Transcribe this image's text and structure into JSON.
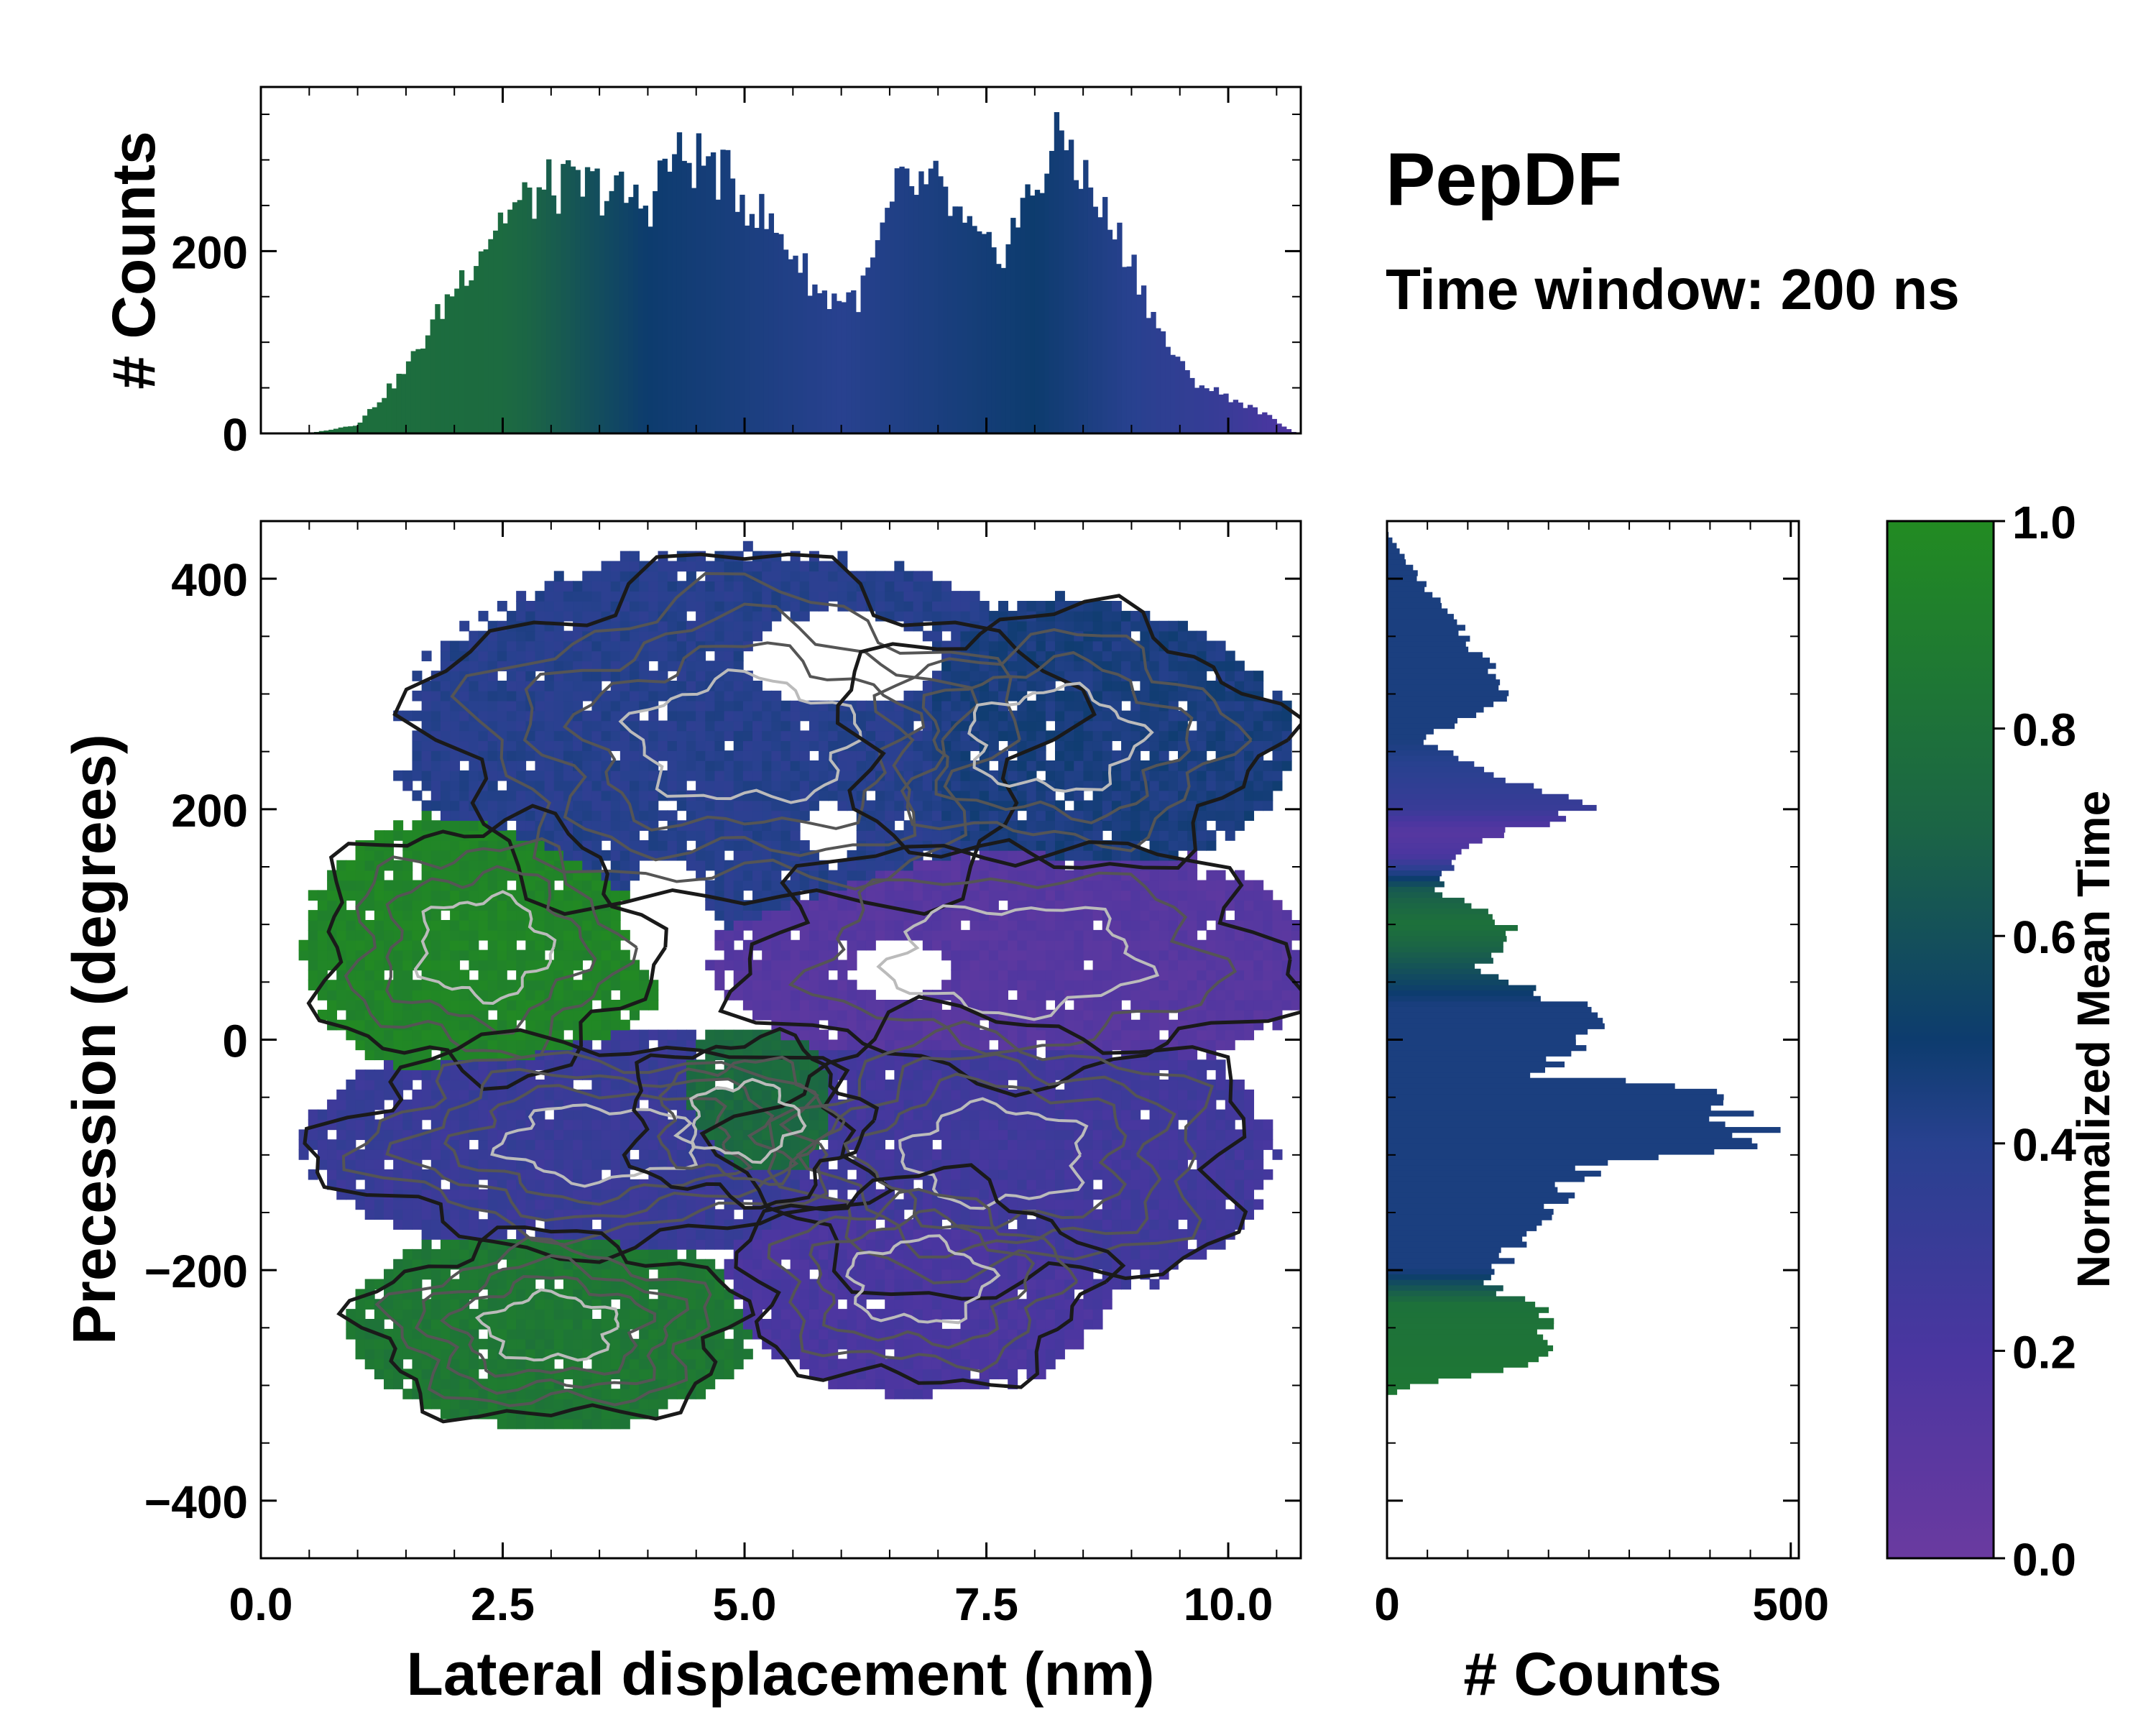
{
  "title": "PepDF",
  "subtitle": "Time window: 200 ns",
  "chart_data": [
    {
      "id": "top-histogram",
      "type": "bar",
      "description_role": "marginal histogram of lateral displacement",
      "ylabel": "# Counts",
      "xlim": [
        0,
        10.75
      ],
      "ylim": [
        0,
        380
      ],
      "yticks": [
        0,
        200
      ],
      "anchors_x": [
        0.5,
        1.0,
        1.5,
        2.0,
        2.5,
        3.0,
        3.5,
        4.0,
        4.2,
        4.6,
        5.0,
        5.5,
        5.8,
        6.2,
        6.6,
        7.0,
        7.3,
        7.6,
        8.0,
        8.3,
        8.6,
        9.0,
        9.3,
        9.6,
        10.0,
        10.4,
        10.7
      ],
      "anchors_y": [
        0,
        10,
        70,
        160,
        240,
        270,
        270,
        250,
        300,
        300,
        260,
        200,
        150,
        150,
        270,
        270,
        220,
        190,
        270,
        330,
        260,
        190,
        110,
        60,
        40,
        20,
        0
      ],
      "color_anchors_x": [
        0,
        2.5,
        4.0,
        6.0,
        8.0,
        10.0,
        10.75
      ],
      "color_anchors_t": [
        0.8,
        0.75,
        0.5,
        0.4,
        0.5,
        0.3,
        0.15
      ]
    },
    {
      "id": "main-heatmap",
      "type": "heatmap",
      "title": "",
      "xlabel": "Lateral displacement (nm)",
      "ylabel": "Precession (degrees)",
      "xlim": [
        0,
        10.75
      ],
      "ylim": [
        -450,
        450
      ],
      "xticks": [
        0.0,
        2.5,
        5.0,
        7.5,
        10.0
      ],
      "xtick_labels": [
        "0.0",
        "2.5",
        "5.0",
        "7.5",
        "10.0"
      ],
      "yticks": [
        400,
        200,
        0,
        -200,
        -400
      ],
      "ytick_labels": [
        "400",
        "200",
        "0",
        "−200",
        "−400"
      ],
      "grid": false,
      "regions": [
        {
          "name": "upper-cluster",
          "cx": 5.0,
          "cy": 260,
          "rx": 3.2,
          "ry": 150,
          "t": 0.4,
          "levels": 5
        },
        {
          "name": "upper-right-cluster",
          "cx": 8.2,
          "cy": 260,
          "rx": 2.2,
          "ry": 110,
          "t": 0.45,
          "levels": 4
        },
        {
          "name": "left-green-cluster",
          "cx": 2.3,
          "cy": 80,
          "rx": 1.7,
          "ry": 110,
          "t": 0.95,
          "levels": 4
        },
        {
          "name": "center-right-purple",
          "cx": 7.8,
          "cy": 70,
          "rx": 2.8,
          "ry": 100,
          "t": 0.12,
          "levels": 3
        },
        {
          "name": "left-middle-blue",
          "cx": 3.5,
          "cy": -90,
          "rx": 2.8,
          "ry": 90,
          "t": 0.3,
          "levels": 5
        },
        {
          "name": "center-right-mixed",
          "cx": 7.6,
          "cy": -100,
          "rx": 2.6,
          "ry": 120,
          "t": 0.25,
          "levels": 5
        },
        {
          "name": "bottom-left-green",
          "cx": 3.0,
          "cy": -250,
          "rx": 1.9,
          "ry": 80,
          "t": 0.85,
          "levels": 5
        },
        {
          "name": "bottom-center-purple",
          "cx": 6.8,
          "cy": -210,
          "rx": 1.8,
          "ry": 90,
          "t": 0.2,
          "levels": 4
        },
        {
          "name": "center-green",
          "cx": 5.0,
          "cy": -70,
          "rx": 1.2,
          "ry": 70,
          "t": 0.75,
          "levels": 3
        }
      ],
      "holes": [
        {
          "cx": 4.2,
          "cy": 105,
          "rx": 0.45,
          "ry": 55
        },
        {
          "cx": 6.0,
          "cy": 330,
          "rx": 1.0,
          "ry": 40
        },
        {
          "cx": 5.9,
          "cy": 180,
          "rx": 0.3,
          "ry": 25
        },
        {
          "cx": 6.6,
          "cy": 60,
          "rx": 0.5,
          "ry": 25
        }
      ]
    },
    {
      "id": "right-histogram",
      "type": "bar",
      "orientation": "horizontal",
      "description_role": "marginal histogram of precession",
      "xlabel": "# Counts",
      "xlim": [
        0,
        510
      ],
      "ylim": [
        -450,
        450
      ],
      "xticks": [
        0,
        500
      ],
      "xtick_labels": [
        "0",
        "500"
      ],
      "anchors_y": [
        440,
        400,
        330,
        300,
        260,
        200,
        170,
        130,
        100,
        80,
        60,
        30,
        0,
        -30,
        -40,
        -60,
        -80,
        -90,
        -110,
        -140,
        -180,
        -210,
        -240,
        -280,
        -300,
        -310
      ],
      "anchors_v": [
        0,
        40,
        120,
        160,
        40,
        250,
        100,
        60,
        150,
        160,
        110,
        230,
        260,
        180,
        380,
        420,
        470,
        440,
        250,
        210,
        160,
        120,
        200,
        190,
        30,
        0
      ],
      "color_anchors_y": [
        450,
        260,
        200,
        180,
        160,
        130,
        100,
        30,
        -200,
        -230,
        -310
      ],
      "color_anchors_t": [
        0.45,
        0.45,
        0.3,
        0.12,
        0.2,
        0.65,
        0.8,
        0.45,
        0.45,
        0.8,
        0.85
      ]
    },
    {
      "id": "colorbar",
      "type": "colorbar",
      "label": "Normalized Mean Time",
      "range": [
        0.0,
        1.0
      ],
      "ticks": [
        1.0,
        0.8,
        0.6,
        0.4,
        0.2,
        0.0
      ],
      "tick_labels": [
        "1.0",
        "0.8",
        "0.6",
        "0.4",
        "0.2",
        "0.0"
      ],
      "colormap": [
        {
          "t": 0.0,
          "color": "#6a3aa0"
        },
        {
          "t": 0.2,
          "color": "#4a36a0"
        },
        {
          "t": 0.4,
          "color": "#28418f"
        },
        {
          "t": 0.5,
          "color": "#0d3c6e"
        },
        {
          "t": 0.7,
          "color": "#1b6446"
        },
        {
          "t": 1.0,
          "color": "#228b22"
        }
      ]
    }
  ]
}
